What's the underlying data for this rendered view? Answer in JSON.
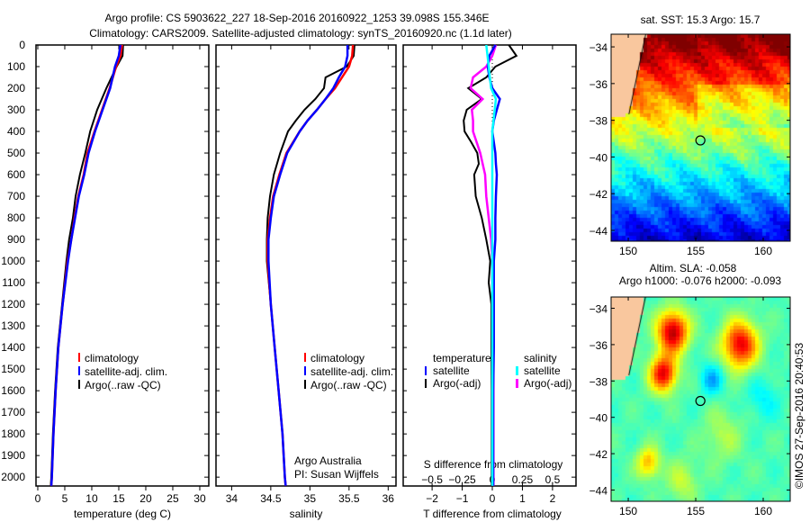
{
  "title": {
    "line1": "Argo profile: CS 5903622_227 18-Sep-2016 20160922_1253 39.098S 155.346E",
    "line2": "Climatology: CARS2009. Satellite-adjusted climatology: synTS_20160920.nc (1.1d later)"
  },
  "credit": "©IMOS 27-Sep-2016 20:40:53",
  "colors": {
    "climatology": "#ff0000",
    "satellite": "#0000ff",
    "argo": "#000000",
    "sal_sat": "#00ffff",
    "sal_argo": "#ff00ff",
    "land": "#f9c79e"
  },
  "chart_data": [
    {
      "type": "line",
      "id": "temperature",
      "xlabel": "temperature (deg C)",
      "ylabel": "depth",
      "xlim": [
        -0.33,
        31.67
      ],
      "ylim": [
        2041,
        0
      ],
      "xticks": [
        0,
        5,
        10,
        15,
        20,
        25,
        30
      ],
      "yticks": [
        0,
        100,
        200,
        300,
        400,
        500,
        600,
        700,
        800,
        900,
        1000,
        1100,
        1200,
        1300,
        1400,
        1500,
        1600,
        1700,
        1800,
        1900,
        2000
      ],
      "depth": [
        0,
        50,
        100,
        200,
        300,
        400,
        500,
        600,
        700,
        800,
        900,
        1000,
        1200,
        1400,
        1600,
        1800,
        2000,
        2040
      ],
      "series": [
        {
          "name": "climatology",
          "color": "#ff0000",
          "values": [
            15.6,
            15.3,
            14.5,
            13.3,
            11.9,
            10.5,
            9.2,
            8.5,
            7.5,
            6.8,
            6.2,
            5.5,
            4.6,
            3.8,
            3.3,
            2.9,
            2.6,
            2.5
          ]
        },
        {
          "name": "satellite-adj. clim.",
          "color": "#0000ff",
          "values": [
            15.3,
            15.0,
            14.3,
            13.4,
            12.0,
            10.6,
            9.4,
            8.6,
            7.6,
            6.9,
            6.2,
            5.6,
            4.6,
            3.8,
            3.3,
            2.9,
            2.6,
            2.5
          ]
        },
        {
          "name": "Argo(..raw -QC)",
          "color": "#000000",
          "values": [
            15.8,
            15.7,
            14.6,
            12.7,
            11.0,
            9.7,
            8.8,
            7.8,
            7.0,
            6.5,
            5.8,
            5.3,
            4.5,
            3.7,
            3.2,
            2.8,
            2.5,
            2.4
          ]
        }
      ],
      "legend": [
        "climatology",
        "satellite-adj. clim.",
        "Argo(..raw -QC)"
      ]
    },
    {
      "type": "line",
      "id": "salinity",
      "xlabel": "salinity",
      "xlim": [
        33.8,
        36.1
      ],
      "ylim": [
        2041,
        0
      ],
      "xticks": [
        34,
        34.5,
        35,
        35.5,
        36
      ],
      "depth": [
        0,
        50,
        100,
        150,
        200,
        250,
        300,
        350,
        400,
        500,
        600,
        700,
        800,
        900,
        1000,
        1200,
        1400,
        1600,
        1800,
        2000,
        2040
      ],
      "series": [
        {
          "name": "climatology",
          "color": "#ff0000",
          "values": [
            35.55,
            35.54,
            35.5,
            35.41,
            35.32,
            35.2,
            35.09,
            34.97,
            34.87,
            34.7,
            34.61,
            34.53,
            34.49,
            34.46,
            34.46,
            34.5,
            34.55,
            34.6,
            34.65,
            34.68,
            34.69
          ]
        },
        {
          "name": "satellite-adj. clim.",
          "color": "#0000ff",
          "values": [
            35.48,
            35.48,
            35.45,
            35.37,
            35.3,
            35.2,
            35.09,
            34.97,
            34.87,
            34.71,
            34.62,
            34.54,
            34.5,
            34.47,
            34.47,
            34.5,
            34.55,
            34.6,
            34.65,
            34.68,
            34.69
          ]
        },
        {
          "name": "Argo(..raw -QC)",
          "color": "#000000",
          "values": [
            35.57,
            35.56,
            35.47,
            35.2,
            35.18,
            35.07,
            34.93,
            34.82,
            34.72,
            34.62,
            34.54,
            34.49,
            34.46,
            34.45,
            34.45,
            34.5,
            34.55,
            34.6,
            34.65,
            34.68,
            34.69
          ]
        }
      ],
      "legend": [
        "climatology",
        "satellite-adj. clim.",
        "Argo(..raw -QC)"
      ],
      "annotation": [
        "Argo Australia",
        "PI: Susan Wijffels"
      ]
    },
    {
      "type": "line",
      "id": "difference",
      "xlabel": "T difference from climatology",
      "x2label": "S difference from climatology",
      "xlim": [
        -2.96,
        2.78
      ],
      "xticks": [
        -2,
        -1,
        0,
        1,
        2
      ],
      "x2ticks": [
        -0.5,
        -0.25,
        0,
        0.25,
        0.5
      ],
      "x2ticklabels": [
        "-0.5",
        "-0.25",
        "0",
        "0.25",
        "0.5"
      ],
      "s_per_t": 0.25,
      "depth": [
        0,
        50,
        100,
        150,
        200,
        250,
        300,
        350,
        400,
        450,
        500,
        550,
        600,
        700,
        800,
        900,
        1000,
        1100,
        1200,
        1400,
        1600,
        1800,
        2000,
        2040
      ],
      "series": [
        {
          "name": "temperature satellite",
          "kind": "T",
          "color": "#0000ff",
          "values": [
            0.1,
            -0.1,
            -0.15,
            -0.1,
            0,
            0.25,
            0.15,
            0.05,
            0,
            0.05,
            0.1,
            0.12,
            0.15,
            0.12,
            0.1,
            0.1,
            0.05,
            0.05,
            0.05,
            0.05,
            0.03,
            0.03,
            0.03,
            0.03
          ]
        },
        {
          "name": "temperature Argo(-adj)",
          "kind": "T",
          "color": "#000000",
          "values": [
            0.55,
            0.8,
            0.1,
            -0.2,
            -0.8,
            -0.35,
            -0.85,
            -0.95,
            -0.92,
            -0.7,
            -0.5,
            -0.45,
            -0.6,
            -0.55,
            -0.35,
            -0.2,
            -0.07,
            -0.12,
            -0.03,
            -0.03,
            -0.02,
            -0.02,
            -0.02,
            -0.02
          ]
        },
        {
          "name": "salinity satellite",
          "kind": "S",
          "color": "#00ffff",
          "values": [
            -0.05,
            -0.04,
            -0.03,
            -0.02,
            -0.01,
            0.03,
            0.02,
            0.01,
            0,
            0,
            0,
            0,
            0,
            0,
            0,
            0,
            0,
            0,
            0,
            0,
            0,
            0,
            0,
            0
          ]
        },
        {
          "name": "salinity Argo(-adj)",
          "kind": "S",
          "color": "#ff00ff",
          "values": [
            0.03,
            0,
            -0.05,
            -0.16,
            -0.18,
            -0.08,
            -0.17,
            -0.16,
            -0.16,
            -0.13,
            -0.1,
            -0.08,
            -0.06,
            -0.05,
            -0.03,
            -0.01,
            0,
            0,
            0.01,
            0.01,
            0.01,
            0.01,
            0.01,
            0.01
          ]
        }
      ],
      "legend": {
        "temp_header": "temperature",
        "sal_header": "salinity",
        "items": [
          "satellite",
          "Argo(-adj)",
          "satellite",
          "Argo(-adj)"
        ]
      }
    },
    {
      "type": "heatmap",
      "id": "sst-map",
      "title": "sat. SST: 15.3 Argo: 15.7",
      "xticks": [
        150,
        155,
        160
      ],
      "yticks": [
        -34,
        -36,
        -38,
        -40,
        -42,
        -44
      ],
      "lon_range": [
        148.73,
        162.0
      ],
      "lat_range": [
        -44.59,
        -33.31
      ],
      "profile_location": {
        "lon": 155.346,
        "lat": -39.098
      }
    },
    {
      "type": "heatmap",
      "id": "sla-map",
      "title_line1": "Altim. SLA: -0.058",
      "title_line2": "Argo h1000: -0.076 h2000: -0.093",
      "xticks": [
        150,
        155,
        160
      ],
      "yticks": [
        -34,
        -36,
        -38,
        -40,
        -42,
        -44
      ],
      "lon_range": [
        148.73,
        162.0
      ],
      "lat_range": [
        -44.62,
        -33.38
      ],
      "profile_location": {
        "lon": 155.346,
        "lat": -39.098
      }
    }
  ]
}
